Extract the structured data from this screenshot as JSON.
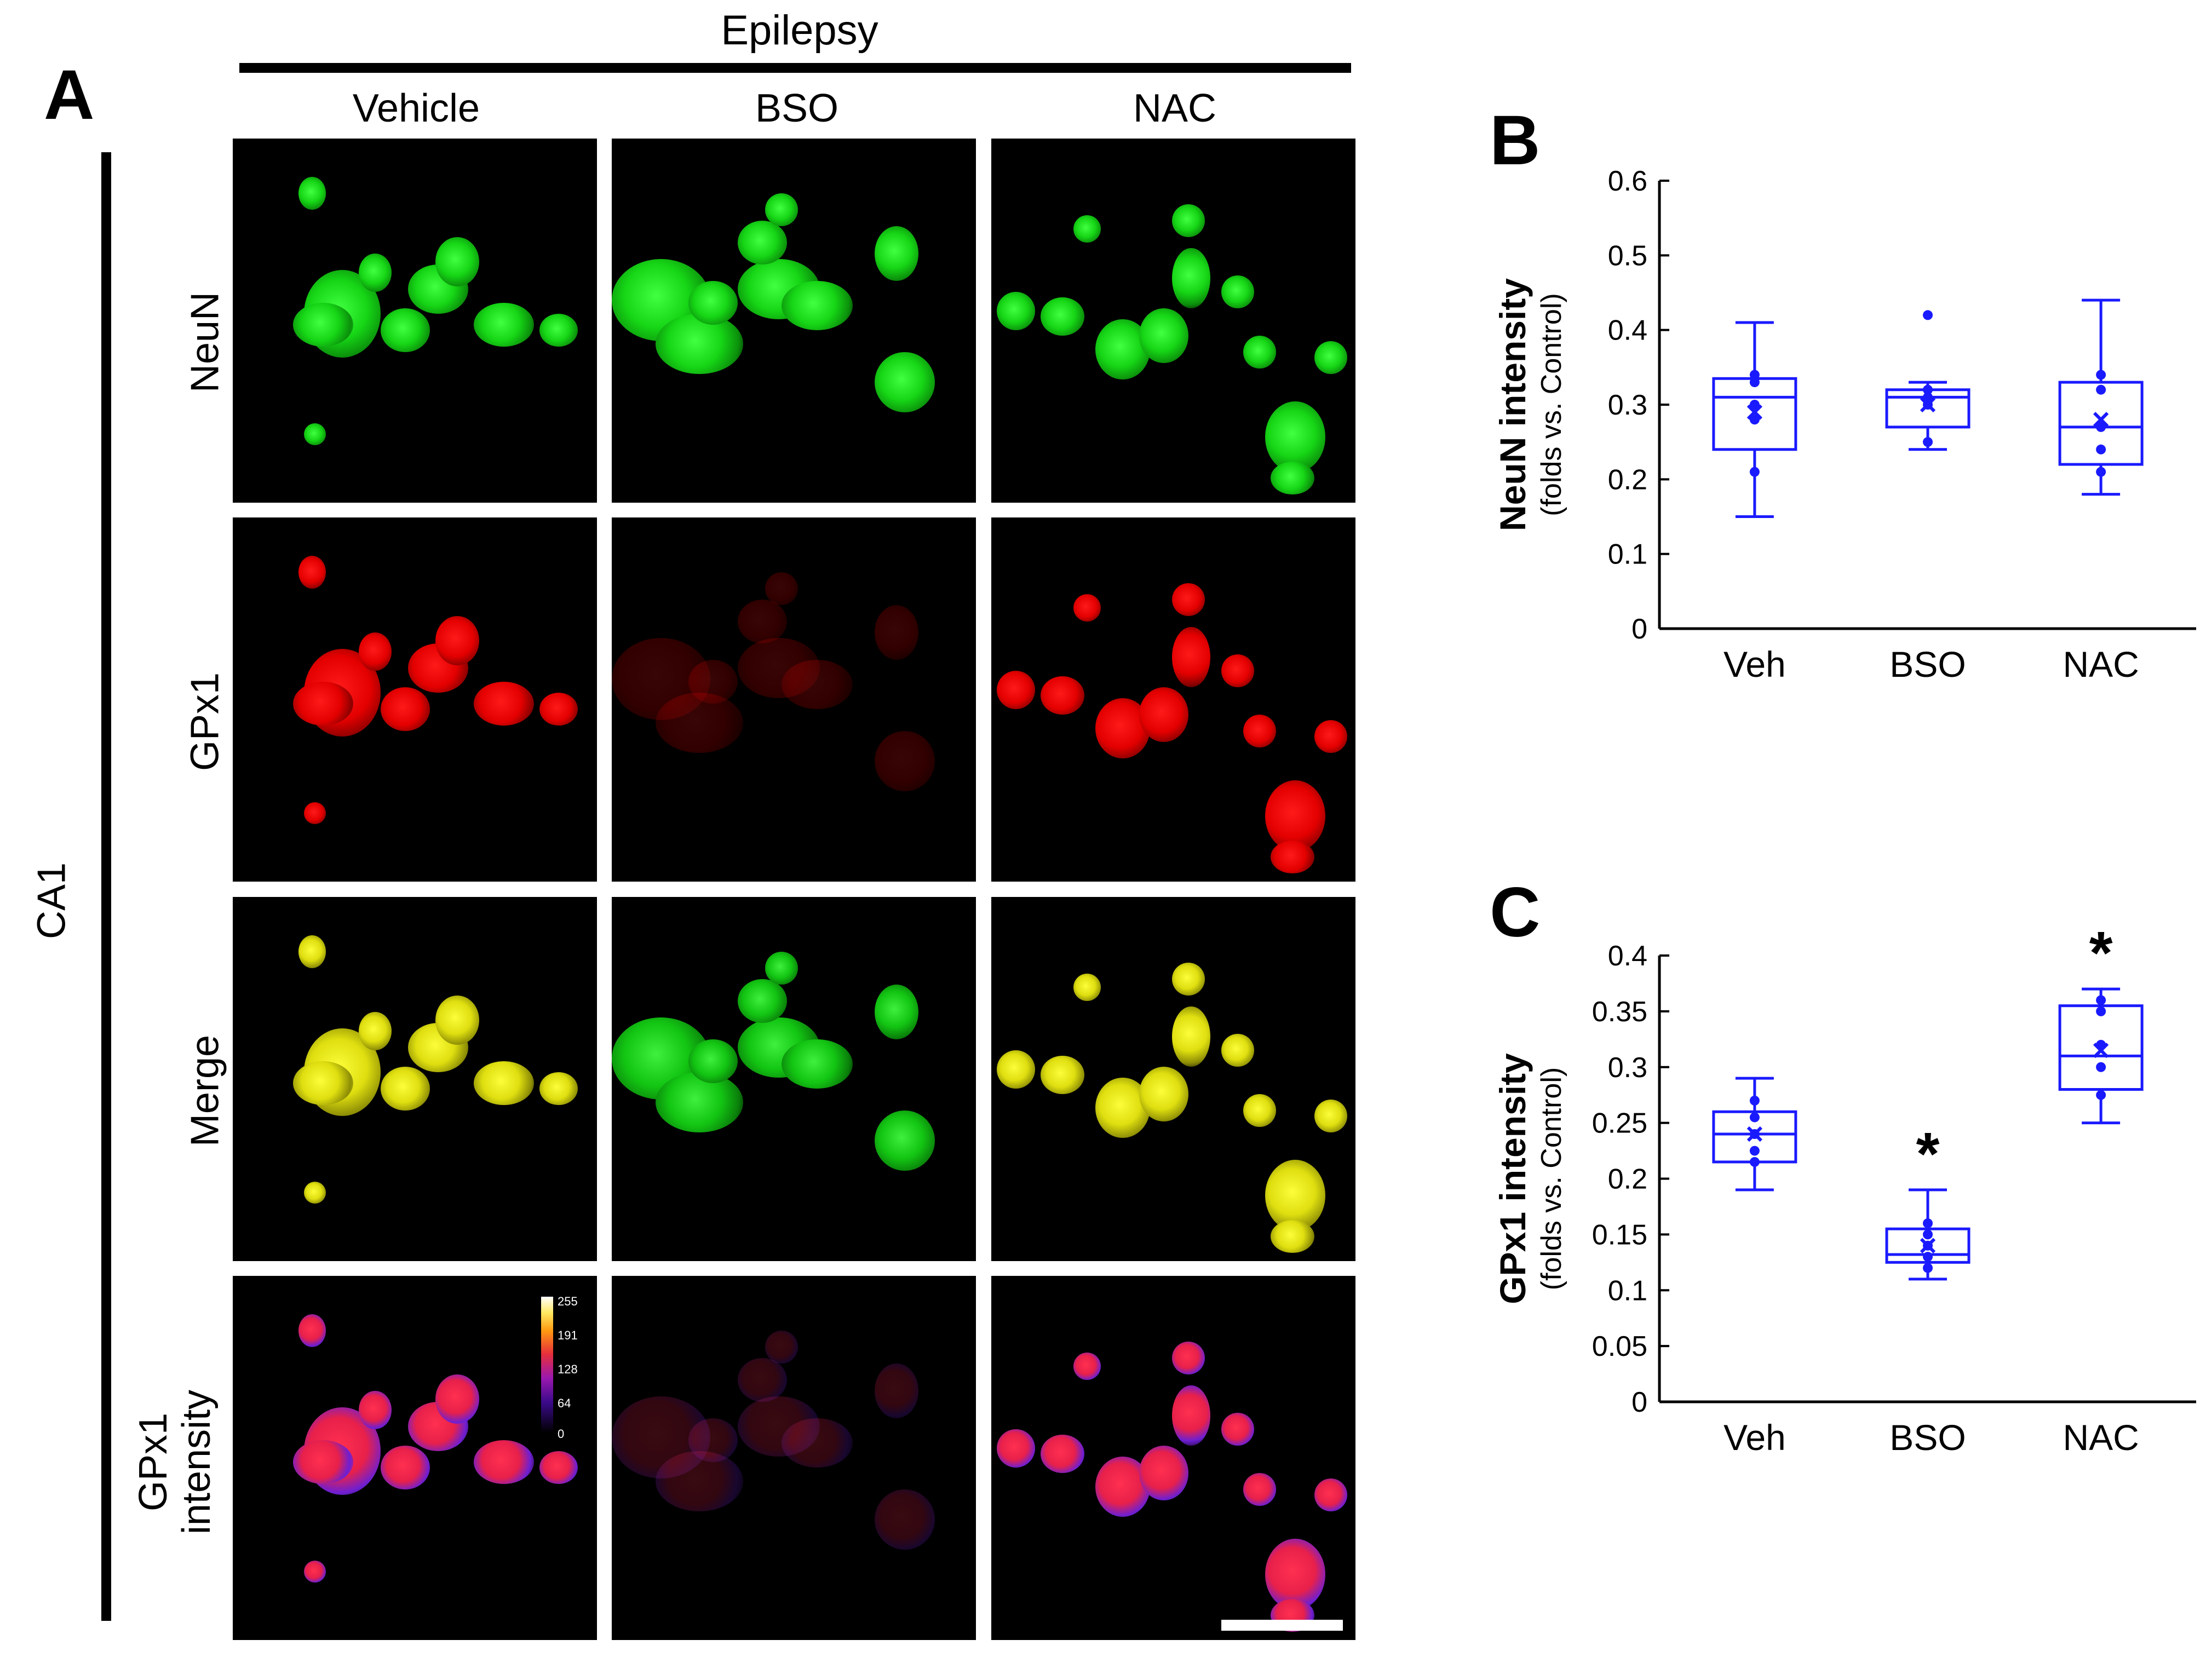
{
  "panel_a": {
    "label": "A",
    "group_header": "Epilepsy",
    "columns": [
      "Vehicle",
      "BSO",
      "NAC"
    ],
    "region_label": "CA1",
    "rows": [
      "NeuN",
      "GPx1",
      "Merge",
      "GPx1\nintensity"
    ],
    "colorbar_ticks": [
      "255",
      "191",
      "128",
      "64",
      "0"
    ]
  },
  "chart_data": [
    {
      "panel_label": "B",
      "type": "box",
      "ylabel": "NeuN intensity",
      "ylabel_sub": "(folds vs. Control)",
      "categories": [
        "Veh",
        "BSO",
        "NAC"
      ],
      "ylim": [
        0,
        0.6
      ],
      "yticks": [
        0,
        0.1,
        0.2,
        0.3,
        0.4,
        0.5,
        0.6
      ],
      "ytick_labels": [
        "0",
        "0.1",
        "0.2",
        "0.3",
        "0.4",
        "0.5",
        "0.6"
      ],
      "boxes": [
        {
          "min": 0.15,
          "q1": 0.24,
          "median": 0.31,
          "q3": 0.335,
          "max": 0.41,
          "mean": 0.29,
          "points": [
            0.34,
            0.33,
            0.3,
            0.28,
            0.21
          ]
        },
        {
          "min": 0.24,
          "q1": 0.27,
          "median": 0.31,
          "q3": 0.32,
          "max": 0.33,
          "mean": 0.3,
          "points": [
            0.42,
            0.32,
            0.31,
            0.3,
            0.25
          ]
        },
        {
          "min": 0.18,
          "q1": 0.22,
          "median": 0.27,
          "q3": 0.33,
          "max": 0.44,
          "mean": 0.28,
          "points": [
            0.34,
            0.32,
            0.27,
            0.24,
            0.21
          ]
        }
      ],
      "significance": [
        "",
        "",
        ""
      ],
      "color": "#1a1aff"
    },
    {
      "panel_label": "C",
      "type": "box",
      "ylabel": "GPx1 intensity",
      "ylabel_sub": "(folds vs. Control)",
      "categories": [
        "Veh",
        "BSO",
        "NAC"
      ],
      "ylim": [
        0,
        0.4
      ],
      "yticks": [
        0,
        0.05,
        0.1,
        0.15,
        0.2,
        0.25,
        0.3,
        0.35,
        0.4
      ],
      "ytick_labels": [
        "0",
        "0.05",
        "0.1",
        "0.15",
        "0.2",
        "0.25",
        "0.3",
        "0.35",
        "0.4"
      ],
      "boxes": [
        {
          "min": 0.19,
          "q1": 0.215,
          "median": 0.24,
          "q3": 0.26,
          "max": 0.29,
          "mean": 0.24,
          "points": [
            0.27,
            0.255,
            0.24,
            0.225,
            0.215
          ]
        },
        {
          "min": 0.11,
          "q1": 0.125,
          "median": 0.132,
          "q3": 0.155,
          "max": 0.19,
          "mean": 0.14,
          "points": [
            0.16,
            0.15,
            0.14,
            0.13,
            0.12
          ]
        },
        {
          "min": 0.25,
          "q1": 0.28,
          "median": 0.31,
          "q3": 0.355,
          "max": 0.37,
          "mean": 0.315,
          "points": [
            0.36,
            0.35,
            0.32,
            0.3,
            0.275
          ]
        }
      ],
      "significance": [
        "",
        "*",
        "*"
      ],
      "color": "#1a1aff"
    }
  ]
}
